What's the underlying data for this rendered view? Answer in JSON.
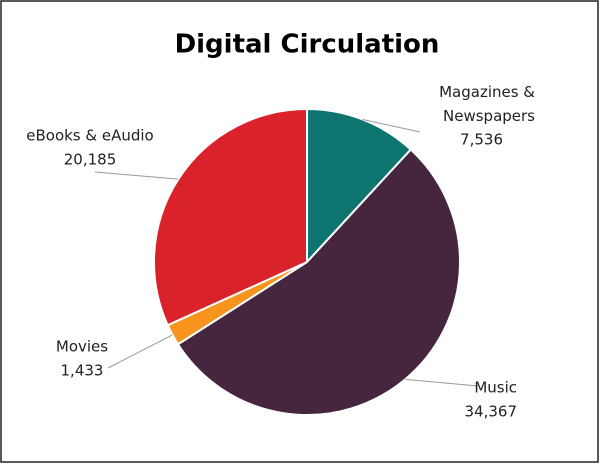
{
  "chart_data": {
    "type": "pie",
    "title": "Digital Circulation",
    "categories": [
      "Magazines & Newspapers",
      "Music",
      "Movies",
      "eBooks & eAudio"
    ],
    "values": [
      7536,
      34367,
      1433,
      20185
    ],
    "value_labels": [
      "7,536",
      "34,367",
      "1,433",
      "20,185"
    ],
    "colors": [
      "#0e7470",
      "#46263f",
      "#f7941d",
      "#d9222a"
    ]
  }
}
